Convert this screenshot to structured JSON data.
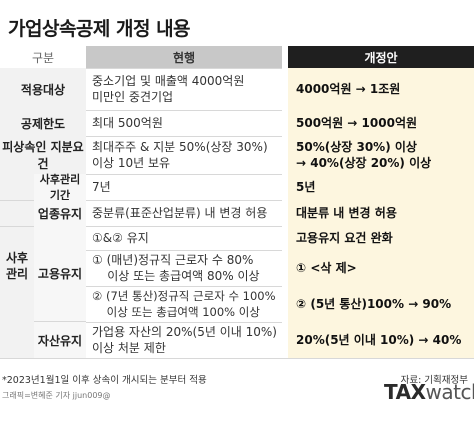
{
  "title": "가업상속공제 개정 내용",
  "header": {
    "category": "구분",
    "current": "현행",
    "revised": "개정안"
  },
  "rows": {
    "r1": {
      "category": "적용대상",
      "current": [
        "중소기업 및 매출액 4000억원",
        "미만인 중견기업"
      ],
      "revised": [
        "4000억원 → 1조원"
      ]
    },
    "r2": {
      "category": "공제한도",
      "current": [
        "최대 500억원"
      ],
      "revised": [
        "500억원 → 1000억원"
      ]
    },
    "r3": {
      "category": "피상속인 지분요건",
      "current": [
        "최대주주 & 지분 50%(상장 30%)",
        "이상 10년 보유"
      ],
      "revised": [
        "50%(상장 30%) 이상",
        "→ 40%(상장 20%) 이상"
      ]
    },
    "group": {
      "label_line1": "사후",
      "label_line2": "관리"
    },
    "r4": {
      "category": "사후관리 기간",
      "current": [
        "7년"
      ],
      "revised": [
        "5년"
      ]
    },
    "r5": {
      "category": "업종유지",
      "current": [
        "중분류(표준산업분류) 내 변경 허용"
      ],
      "revised": [
        "대분류 내 변경 허용"
      ]
    },
    "r6": {
      "category": "고용유지",
      "a": {
        "current": [
          "①&② 유지"
        ],
        "revised": [
          "고용유지 요건 완화"
        ]
      },
      "b": {
        "current": [
          "① (매년)정규직 근로자 수 80%",
          "    이상 또는 총급여액 80% 이상"
        ],
        "revised": [
          "① <삭 제>"
        ]
      },
      "c": {
        "current": [
          "② (7년 통산)정규직 근로자 수 100%",
          "    이상 또는 총급여액 100% 이상"
        ],
        "revised": [
          "② (5년 통산)100% → 90%"
        ]
      }
    },
    "r7": {
      "category": "자산유지",
      "current": [
        "가업용 자산의 20%(5년 이내 10%)",
        "이상 처분 제한"
      ],
      "revised": [
        "20%(5년 이내 10%) → 40%"
      ]
    }
  },
  "footnote": "*2023년1월1일 이후 상속이 개시되는 분부터 적용",
  "source": "자료: 기획재정부",
  "credit": "그래픽=변혜준 기자 jjun009@",
  "logo": {
    "bold": "TAX",
    "light": "watch"
  },
  "colors": {
    "revised_bg": "#fdf6df",
    "header_dark": "#1f1f1f",
    "header_gray": "#c8c8c8",
    "category_bg": "#f2f2f2"
  }
}
